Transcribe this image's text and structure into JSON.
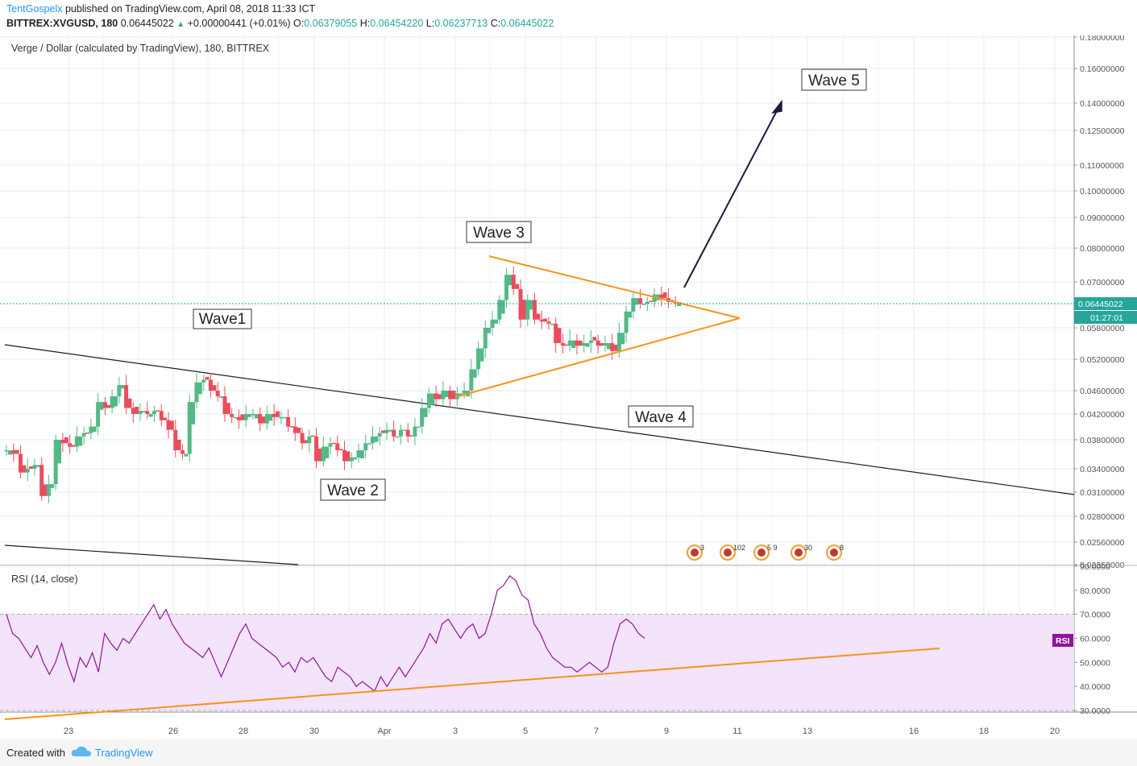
{
  "header": {
    "author": "TentGospelx",
    "published": "published on TradingView.com, April 08, 2018 11:33 ICT",
    "symbol": "BITTREX:XVGUSD, 180",
    "last": "0.06445022",
    "change": "+0.00000441 (+0.01%)",
    "o_label": "O:",
    "o_value": "0.06379055",
    "h_label": "H:",
    "h_value": "0.06454220",
    "l_label": "L:",
    "l_value": "0.06237713",
    "c_label": "C:",
    "c_value": "0.06445022"
  },
  "footer": {
    "created": "Created with",
    "brand": "TradingView"
  },
  "colors": {
    "up": "#53b987",
    "down": "#eb4d5c",
    "triangle": "#f7931a",
    "rsi": "#8e1599",
    "rsi_band": "#f3e3fb",
    "last_price": "#26a69a"
  },
  "chart_data": [
    {
      "type": "candlestick",
      "title": "Verge / Dollar (calculated by TradingView), 180, BITTREX",
      "scale": "log",
      "x_tick_labels": [
        "23",
        "26",
        "28",
        "30",
        "Apr",
        "3",
        "5",
        "7",
        "9",
        "11",
        "13",
        "16",
        "18",
        "20"
      ],
      "y_tick_labels": [
        "0.18000000",
        "0.16000000",
        "0.14000000",
        "0.12500000",
        "0.11000000",
        "0.10000000",
        "0.09000000",
        "0.08000000",
        "0.07000000",
        "0.05800000",
        "0.05200000",
        "0.04600000",
        "0.04200000",
        "0.03800000",
        "0.03400000",
        "0.03100000",
        "0.02800000",
        "0.02560000",
        "0.02350000"
      ],
      "last_price_label": "0.06445022",
      "countdown_label": "01:27:01",
      "price_path": [
        [
          0,
          0.0365
        ],
        [
          2,
          0.036
        ],
        [
          4,
          0.0335
        ],
        [
          6,
          0.034
        ],
        [
          8,
          0.0345
        ],
        [
          10,
          0.0305
        ],
        [
          12,
          0.032
        ],
        [
          14,
          0.038
        ],
        [
          16,
          0.0375
        ],
        [
          18,
          0.037
        ],
        [
          20,
          0.0385
        ],
        [
          22,
          0.039
        ],
        [
          24,
          0.04
        ],
        [
          26,
          0.044
        ],
        [
          28,
          0.043
        ],
        [
          30,
          0.045
        ],
        [
          32,
          0.047
        ],
        [
          34,
          0.043
        ],
        [
          36,
          0.042
        ],
        [
          38,
          0.0425
        ],
        [
          40,
          0.042
        ],
        [
          42,
          0.0425
        ],
        [
          44,
          0.041
        ],
        [
          46,
          0.0395
        ],
        [
          48,
          0.0365
        ],
        [
          50,
          0.036
        ],
        [
          52,
          0.044
        ],
        [
          54,
          0.0475
        ],
        [
          56,
          0.048
        ],
        [
          58,
          0.046
        ],
        [
          60,
          0.045
        ],
        [
          62,
          0.042
        ],
        [
          64,
          0.0415
        ],
        [
          66,
          0.041
        ],
        [
          68,
          0.042
        ],
        [
          70,
          0.042
        ],
        [
          72,
          0.0405
        ],
        [
          74,
          0.042
        ],
        [
          76,
          0.0415
        ],
        [
          78,
          0.0415
        ],
        [
          80,
          0.04
        ],
        [
          82,
          0.039
        ],
        [
          84,
          0.0375
        ],
        [
          86,
          0.0385
        ],
        [
          88,
          0.035
        ],
        [
          90,
          0.037
        ],
        [
          92,
          0.0375
        ],
        [
          94,
          0.0365
        ],
        [
          96,
          0.035
        ],
        [
          98,
          0.0355
        ],
        [
          100,
          0.0365
        ],
        [
          102,
          0.0375
        ],
        [
          104,
          0.0385
        ],
        [
          106,
          0.039
        ],
        [
          108,
          0.0395
        ],
        [
          110,
          0.0385
        ],
        [
          112,
          0.0395
        ],
        [
          114,
          0.0385
        ],
        [
          116,
          0.04
        ],
        [
          118,
          0.043
        ],
        [
          120,
          0.0455
        ],
        [
          122,
          0.0445
        ],
        [
          124,
          0.046
        ],
        [
          126,
          0.0445
        ],
        [
          128,
          0.0455
        ],
        [
          130,
          0.046
        ],
        [
          132,
          0.05
        ],
        [
          134,
          0.054
        ],
        [
          136,
          0.058
        ],
        [
          138,
          0.06
        ],
        [
          140,
          0.065
        ],
        [
          142,
          0.072
        ],
        [
          144,
          0.068
        ],
        [
          146,
          0.06
        ],
        [
          148,
          0.065
        ],
        [
          150,
          0.06
        ],
        [
          152,
          0.0595
        ],
        [
          154,
          0.059
        ],
        [
          156,
          0.055
        ],
        [
          158,
          0.0545
        ],
        [
          160,
          0.0555
        ],
        [
          162,
          0.0545
        ],
        [
          164,
          0.055
        ],
        [
          166,
          0.0555
        ],
        [
          168,
          0.0545
        ],
        [
          170,
          0.055
        ],
        [
          172,
          0.0535
        ],
        [
          174,
          0.057
        ],
        [
          176,
          0.062
        ],
        [
          178,
          0.0655
        ],
        [
          180,
          0.064
        ],
        [
          182,
          0.0645
        ],
        [
          184,
          0.0665
        ],
        [
          186,
          0.0655
        ],
        [
          188,
          0.0645
        ],
        [
          190,
          0.06445
        ]
      ],
      "wave_labels": [
        "Wave1",
        "Wave 2",
        "Wave 3",
        "Wave 4",
        "Wave 5"
      ],
      "event_badges": [
        "3",
        "102",
        "5 9",
        "30",
        "8"
      ]
    },
    {
      "type": "line",
      "title": "RSI (14, close)",
      "series_label": "RSI",
      "y_tick_labels": [
        "90.0000",
        "80.0000",
        "70.0000",
        "60.0000",
        "50.0000",
        "40.0000",
        "30.0000"
      ],
      "overbought": 70,
      "oversold": 30,
      "values": [
        70,
        62,
        60,
        56,
        52,
        57,
        50,
        45,
        50,
        58,
        49,
        42,
        52,
        48,
        54,
        46,
        62,
        58,
        55,
        60,
        58,
        62,
        66,
        70,
        74,
        68,
        72,
        66,
        62,
        58,
        56,
        54,
        52,
        56,
        50,
        44,
        50,
        56,
        62,
        66,
        60,
        58,
        56,
        54,
        52,
        48,
        50,
        46,
        52,
        50,
        52,
        48,
        44,
        42,
        48,
        46,
        44,
        40,
        42,
        40,
        38,
        44,
        40,
        44,
        48,
        44,
        48,
        52,
        56,
        62,
        58,
        66,
        68,
        64,
        60,
        64,
        66,
        60,
        62,
        70,
        80,
        82,
        86,
        84,
        78,
        76,
        66,
        62,
        56,
        52,
        50,
        48,
        48,
        46,
        48,
        50,
        48,
        46,
        48,
        58,
        66,
        68,
        66,
        62,
        60
      ]
    }
  ]
}
